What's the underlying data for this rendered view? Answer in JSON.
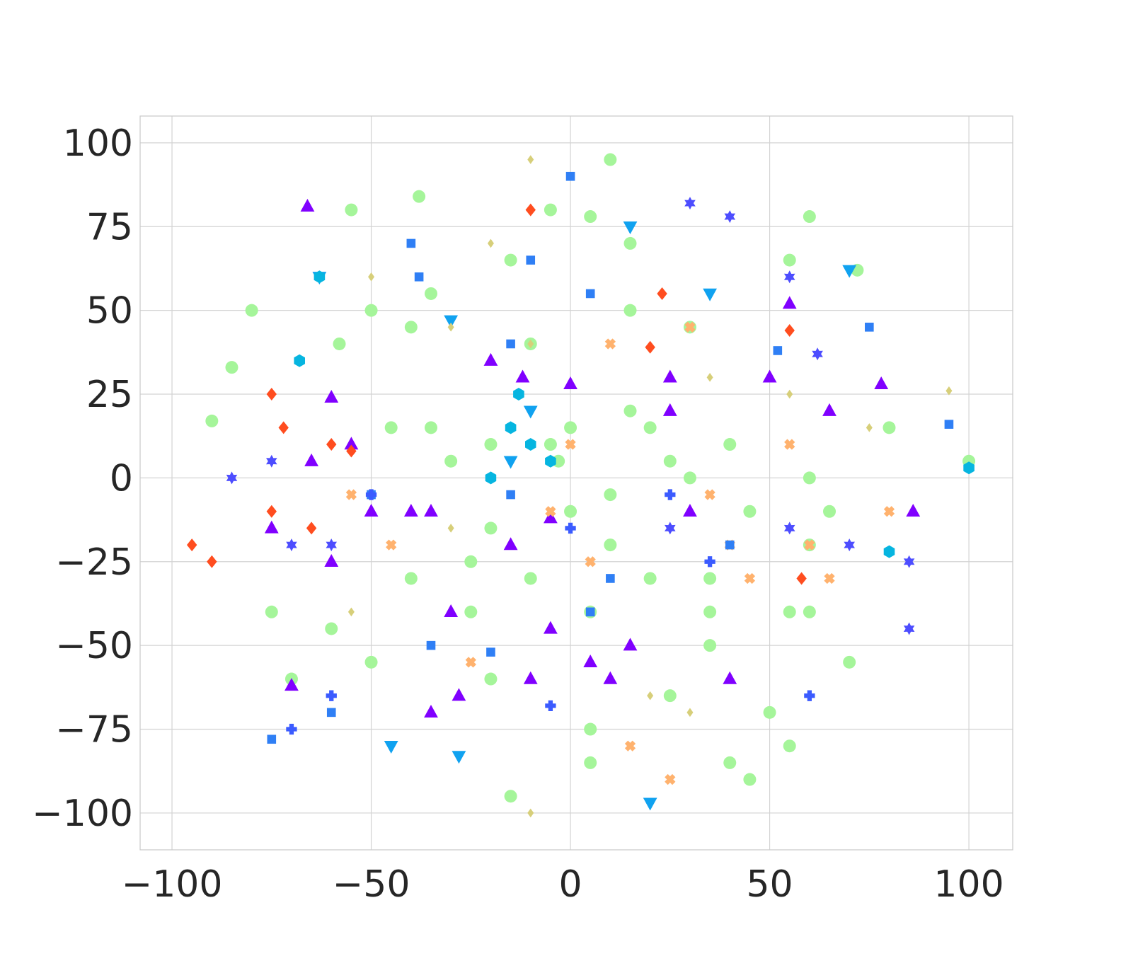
{
  "chart_data": {
    "type": "scatter",
    "title": "",
    "xlabel": "",
    "ylabel": "",
    "xlim": [
      -108,
      111
    ],
    "ylim": [
      -111,
      108
    ],
    "grid": true,
    "legend": "none",
    "x_ticks": [
      {
        "value": -100,
        "label": "−100"
      },
      {
        "value": -50,
        "label": "−50"
      },
      {
        "value": 0,
        "label": "0"
      },
      {
        "value": 50,
        "label": "50"
      },
      {
        "value": 100,
        "label": "100"
      }
    ],
    "y_ticks": [
      {
        "value": 100,
        "label": "100"
      },
      {
        "value": 75,
        "label": "75"
      },
      {
        "value": 50,
        "label": "50"
      },
      {
        "value": 25,
        "label": "25"
      },
      {
        "value": 0,
        "label": "0"
      },
      {
        "value": -25,
        "label": "−25"
      },
      {
        "value": -50,
        "label": "−50"
      },
      {
        "value": -75,
        "label": "−75"
      },
      {
        "value": -100,
        "label": "−100"
      }
    ],
    "series": [
      {
        "marker": "circle",
        "color": "#a5f59a",
        "points": [
          [
            -5,
            80
          ],
          [
            10,
            95
          ],
          [
            -55,
            80
          ],
          [
            -38,
            84
          ],
          [
            -80,
            50
          ],
          [
            -90,
            17
          ],
          [
            -58,
            40
          ],
          [
            -35,
            15
          ],
          [
            -15,
            65
          ],
          [
            -10,
            40
          ],
          [
            5,
            78
          ],
          [
            15,
            50
          ],
          [
            30,
            45
          ],
          [
            60,
            78
          ],
          [
            55,
            65
          ],
          [
            0,
            15
          ],
          [
            -3,
            5
          ],
          [
            10,
            -5
          ],
          [
            5,
            -40
          ],
          [
            20,
            -30
          ],
          [
            35,
            -30
          ],
          [
            55,
            -40
          ],
          [
            60,
            -20
          ],
          [
            -30,
            5
          ],
          [
            -25,
            -25
          ],
          [
            -40,
            -30
          ],
          [
            -75,
            -40
          ],
          [
            -50,
            -55
          ],
          [
            -20,
            -60
          ],
          [
            -15,
            -95
          ],
          [
            5,
            -75
          ],
          [
            25,
            -65
          ],
          [
            35,
            -50
          ],
          [
            50,
            -70
          ],
          [
            55,
            -80
          ],
          [
            70,
            -55
          ],
          [
            45,
            -10
          ],
          [
            10,
            -20
          ],
          [
            -10,
            -30
          ],
          [
            -35,
            55
          ],
          [
            60,
            -40
          ],
          [
            65,
            -10
          ],
          [
            30,
            0
          ],
          [
            40,
            10
          ],
          [
            20,
            15
          ],
          [
            -20,
            10
          ],
          [
            -5,
            10
          ],
          [
            -60,
            -45
          ],
          [
            -85,
            33
          ],
          [
            72,
            62
          ],
          [
            40,
            -85
          ],
          [
            5,
            -85
          ],
          [
            -25,
            -40
          ],
          [
            15,
            20
          ],
          [
            80,
            15
          ],
          [
            100,
            5
          ],
          [
            45,
            -90
          ],
          [
            -45,
            15
          ],
          [
            -20,
            -15
          ],
          [
            15,
            70
          ],
          [
            -70,
            -60
          ],
          [
            25,
            5
          ],
          [
            -50,
            50
          ],
          [
            35,
            -40
          ],
          [
            0,
            -10
          ],
          [
            -40,
            45
          ],
          [
            60,
            0
          ]
        ]
      },
      {
        "marker": "triangle-up",
        "color": "#8000ff",
        "points": [
          [
            78,
            28
          ],
          [
            55,
            52
          ],
          [
            25,
            30
          ],
          [
            -55,
            10
          ],
          [
            -60,
            -25
          ],
          [
            -50,
            -10
          ],
          [
            -40,
            -10
          ],
          [
            -5,
            -45
          ],
          [
            -10,
            -60
          ],
          [
            -70,
            -62
          ],
          [
            -75,
            -15
          ],
          [
            -20,
            35
          ],
          [
            5,
            -55
          ],
          [
            25,
            20
          ],
          [
            15,
            -50
          ],
          [
            30,
            -10
          ],
          [
            -30,
            -40
          ],
          [
            -60,
            24
          ],
          [
            -65,
            5
          ],
          [
            50,
            30
          ],
          [
            86,
            -10
          ],
          [
            -5,
            -12
          ],
          [
            10,
            -60
          ],
          [
            -15,
            -20
          ],
          [
            40,
            -60
          ],
          [
            65,
            20
          ],
          [
            -35,
            -70
          ],
          [
            0,
            28
          ],
          [
            -66,
            81
          ],
          [
            -28,
            -65
          ],
          [
            -35,
            -10
          ],
          [
            -12,
            30
          ]
        ]
      },
      {
        "marker": "triangle-down",
        "color": "#10a2f0",
        "points": [
          [
            -45,
            -80
          ],
          [
            -28,
            -83
          ],
          [
            15,
            75
          ],
          [
            35,
            55
          ],
          [
            -10,
            20
          ],
          [
            -15,
            5
          ],
          [
            70,
            62
          ],
          [
            20,
            -97
          ],
          [
            -63,
            60
          ],
          [
            -30,
            47
          ]
        ]
      },
      {
        "marker": "hexagon",
        "color": "#06b5e0",
        "points": [
          [
            -68,
            35
          ],
          [
            -63,
            60
          ],
          [
            -15,
            15
          ],
          [
            -10,
            10
          ],
          [
            -13,
            25
          ],
          [
            100,
            3
          ],
          [
            -20,
            0
          ],
          [
            -5,
            5
          ],
          [
            80,
            -22
          ]
        ]
      },
      {
        "marker": "diamond",
        "color": "#ff4d1f",
        "points": [
          [
            -90,
            -25
          ],
          [
            -75,
            25
          ],
          [
            -72,
            15
          ],
          [
            -75,
            -10
          ],
          [
            -60,
            10
          ],
          [
            -65,
            -15
          ],
          [
            -95,
            -20
          ],
          [
            23,
            55
          ],
          [
            -55,
            8
          ],
          [
            58,
            -30
          ],
          [
            -10,
            80
          ],
          [
            55,
            44
          ],
          [
            20,
            39
          ]
        ]
      },
      {
        "marker": "cross",
        "color": "#ffb26e",
        "points": [
          [
            30,
            45
          ],
          [
            15,
            -80
          ],
          [
            40,
            -20
          ],
          [
            -55,
            -5
          ],
          [
            0,
            10
          ],
          [
            35,
            -5
          ],
          [
            60,
            -20
          ],
          [
            -25,
            -55
          ],
          [
            -45,
            -20
          ],
          [
            10,
            40
          ],
          [
            65,
            -30
          ],
          [
            5,
            -25
          ],
          [
            -5,
            -10
          ],
          [
            80,
            -10
          ],
          [
            45,
            -30
          ],
          [
            55,
            10
          ],
          [
            25,
            -90
          ]
        ]
      },
      {
        "marker": "star",
        "color": "#4d4dff",
        "points": [
          [
            40,
            78
          ],
          [
            30,
            82
          ],
          [
            85,
            -45
          ],
          [
            -60,
            -20
          ],
          [
            -85,
            0
          ],
          [
            -70,
            -20
          ],
          [
            55,
            -15
          ],
          [
            70,
            -20
          ],
          [
            85,
            -25
          ],
          [
            55,
            60
          ],
          [
            -75,
            5
          ],
          [
            25,
            -15
          ],
          [
            62,
            37
          ]
        ]
      },
      {
        "marker": "square",
        "color": "#2f7ff5",
        "points": [
          [
            -50,
            -5
          ],
          [
            5,
            55
          ],
          [
            -15,
            -5
          ],
          [
            -40,
            70
          ],
          [
            -10,
            65
          ],
          [
            -35,
            -50
          ],
          [
            -60,
            -70
          ],
          [
            -20,
            -52
          ],
          [
            5,
            -40
          ],
          [
            40,
            -20
          ],
          [
            95,
            16
          ],
          [
            -38,
            60
          ],
          [
            -15,
            40
          ],
          [
            10,
            -30
          ],
          [
            0,
            90
          ],
          [
            -75,
            -78
          ],
          [
            52,
            38
          ],
          [
            75,
            45
          ]
        ]
      },
      {
        "marker": "plus",
        "color": "#3b5bff",
        "points": [
          [
            -50,
            -5
          ],
          [
            -70,
            -75
          ],
          [
            25,
            -5
          ],
          [
            35,
            -25
          ],
          [
            0,
            -15
          ],
          [
            -5,
            -68
          ],
          [
            60,
            -65
          ],
          [
            -60,
            -65
          ]
        ]
      },
      {
        "marker": "diamond-small",
        "color": "#d7cf7a",
        "points": [
          [
            -50,
            60
          ],
          [
            35,
            30
          ],
          [
            -10,
            95
          ],
          [
            -20,
            70
          ],
          [
            -10,
            -100
          ],
          [
            -55,
            -40
          ],
          [
            75,
            15
          ],
          [
            -10,
            40
          ],
          [
            55,
            25
          ],
          [
            20,
            -65
          ],
          [
            -30,
            45
          ],
          [
            95,
            26
          ],
          [
            30,
            -70
          ],
          [
            -30,
            -15
          ]
        ]
      }
    ]
  }
}
